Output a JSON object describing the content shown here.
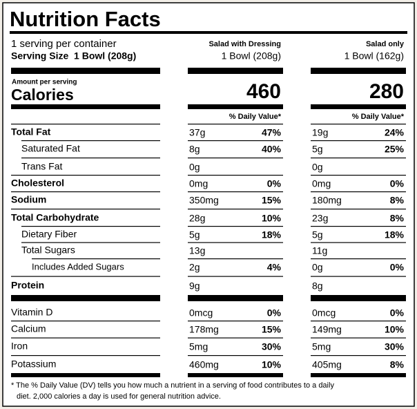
{
  "header": {
    "title": "Nutrition Facts",
    "servings": "1 serving per container",
    "serving_size": "Serving Size  1 Bowl (208g)",
    "amount_per_serving": "Amount per serving",
    "calories_label": "Calories",
    "daily_value_header": "% Daily Value*"
  },
  "columns": [
    {
      "name": "Salad with Dressing",
      "size": "1 Bowl (208g)",
      "calories": 460
    },
    {
      "name": "Salad only",
      "size": "1 Bowl (162g)",
      "calories": 280
    }
  ],
  "nutrients": [
    {
      "label": "Total Fat",
      "values": [
        [
          "37g",
          "47%"
        ],
        [
          "19g",
          "24%"
        ]
      ]
    },
    {
      "label": "Saturated Fat",
      "values": [
        [
          "8g",
          "40%"
        ],
        [
          "5g",
          "25%"
        ]
      ]
    },
    {
      "label": "Trans Fat",
      "values": [
        [
          "0g",
          null
        ],
        [
          "0g",
          null
        ]
      ]
    },
    {
      "label": "Cholesterol",
      "values": [
        [
          "0mg",
          "0%"
        ],
        [
          "0mg",
          "0%"
        ]
      ]
    },
    {
      "label": "Sodium",
      "values": [
        [
          "350mg",
          "15%"
        ],
        [
          "180mg",
          "8%"
        ]
      ]
    },
    {
      "label": "Total Carbohydrate",
      "values": [
        [
          "28g",
          "10%"
        ],
        [
          "23g",
          "8%"
        ]
      ]
    },
    {
      "label": "Dietary Fiber",
      "values": [
        [
          "5g",
          "18%"
        ],
        [
          "5g",
          "18%"
        ]
      ]
    },
    {
      "label": "Total Sugars",
      "values": [
        [
          "13g",
          null
        ],
        [
          "11g",
          null
        ]
      ]
    },
    {
      "label": "Includes Added Sugars",
      "values": [
        [
          "2g",
          "4%"
        ],
        [
          "0g",
          "0%"
        ]
      ]
    },
    {
      "label": "Protein",
      "values": [
        [
          "9g",
          null
        ],
        [
          "8g",
          null
        ]
      ]
    },
    {
      "label": "Vitamin D",
      "values": [
        [
          "0mcg",
          "0%"
        ],
        [
          "0mcg",
          "0%"
        ]
      ]
    },
    {
      "label": "Calcium",
      "values": [
        [
          "178mg",
          "15%"
        ],
        [
          "149mg",
          "10%"
        ]
      ]
    },
    {
      "label": "Iron",
      "values": [
        [
          "5mg",
          "30%"
        ],
        [
          "5mg",
          "30%"
        ]
      ]
    },
    {
      "label": "Potassium",
      "values": [
        [
          "460mg",
          "10%"
        ],
        [
          "405mg",
          "8%"
        ]
      ]
    }
  ],
  "footnote": {
    "lines": [
      "* The % Daily Value (DV) tells you how much a nutrient in a serving of food contributes to a daily",
      "diet. 2,000 calories a day is used for general nutrition advice."
    ]
  }
}
